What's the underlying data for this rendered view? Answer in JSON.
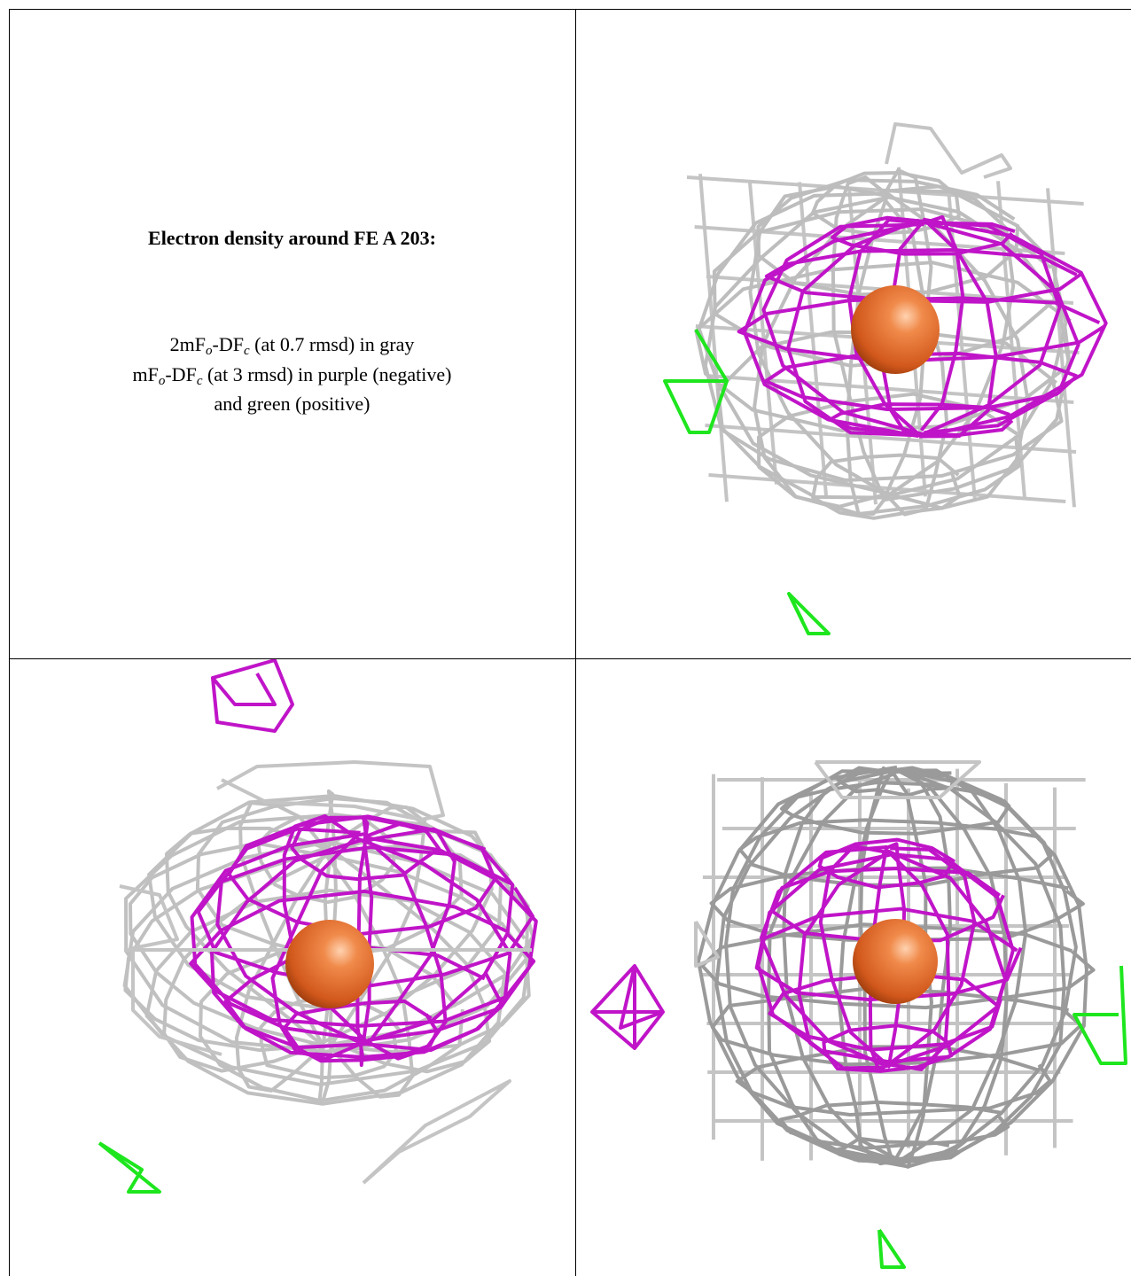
{
  "caption": {
    "title": "Electron density around FE A 203:",
    "lines": [
      [
        "2mF",
        "o",
        "-DF",
        "c",
        " (at 0.7 rmsd) in gray"
      ],
      [
        "mF",
        "o",
        "-DF",
        "c",
        " (at 3 rmsd) in purple (negative)"
      ],
      [
        "and green (positive)"
      ]
    ]
  }
}
